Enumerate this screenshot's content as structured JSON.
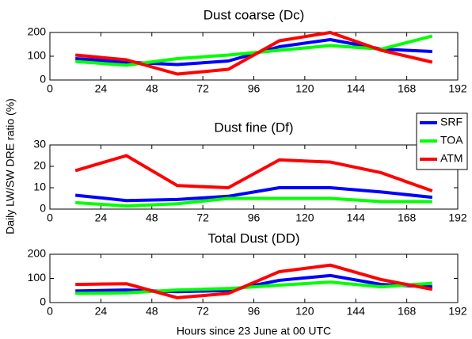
{
  "chart_data": [
    {
      "type": "line",
      "title": "Dust coarse (Dc)",
      "x": [
        12,
        36,
        60,
        84,
        108,
        132,
        156,
        180
      ],
      "series": [
        {
          "color": "#0000ff",
          "values": [
            90,
            75,
            65,
            80,
            140,
            170,
            130,
            120
          ]
        },
        {
          "color": "#00ff00",
          "values": [
            78,
            62,
            90,
            105,
            125,
            145,
            130,
            185
          ]
        },
        {
          "color": "#ff0000",
          "values": [
            105,
            85,
            25,
            45,
            165,
            200,
            125,
            75
          ]
        }
      ],
      "xlim": [
        0,
        192
      ],
      "xticks": [
        0,
        24,
        48,
        72,
        96,
        120,
        144,
        168,
        192
      ],
      "ylim": [
        0,
        200
      ],
      "yticks": [
        0,
        100,
        200
      ]
    },
    {
      "type": "line",
      "title": "Dust fine (Df)",
      "ylabel": "Daily LW/SW DRE ratio (%)",
      "x": [
        12,
        36,
        60,
        84,
        108,
        132,
        156,
        180
      ],
      "series": [
        {
          "name": "SRF",
          "color": "#0000ff",
          "values": [
            6.5,
            4,
            4.5,
            6,
            10,
            10,
            8,
            5.5
          ]
        },
        {
          "name": "TOA",
          "color": "#00ff00",
          "values": [
            3,
            1.5,
            2.5,
            5,
            5,
            5,
            3.5,
            3.5
          ]
        },
        {
          "name": "ATM",
          "color": "#ff0000",
          "values": [
            18,
            25,
            11,
            10,
            23,
            22,
            17,
            8.5
          ]
        }
      ],
      "xlim": [
        0,
        192
      ],
      "xticks": [
        0,
        24,
        48,
        72,
        96,
        120,
        144,
        168,
        192
      ],
      "ylim": [
        0,
        30
      ],
      "yticks": [
        0,
        10,
        20,
        30
      ],
      "legend": "upper-right"
    },
    {
      "type": "line",
      "title": "Total Dust (DD)",
      "xlabel": "Hours since 23 June at 00 UTC",
      "x": [
        12,
        36,
        60,
        84,
        108,
        132,
        156,
        180
      ],
      "series": [
        {
          "color": "#0000ff",
          "values": [
            48,
            52,
            45,
            50,
            92,
            112,
            75,
            65
          ]
        },
        {
          "color": "#00ff00",
          "values": [
            38,
            40,
            52,
            58,
            72,
            85,
            65,
            80
          ]
        },
        {
          "color": "#ff0000",
          "values": [
            75,
            78,
            20,
            38,
            128,
            155,
            95,
            55
          ]
        }
      ],
      "xlim": [
        0,
        192
      ],
      "xticks": [
        0,
        24,
        48,
        72,
        96,
        120,
        144,
        168,
        192
      ],
      "ylim": [
        0,
        200
      ],
      "yticks": [
        0,
        100,
        200
      ]
    }
  ]
}
